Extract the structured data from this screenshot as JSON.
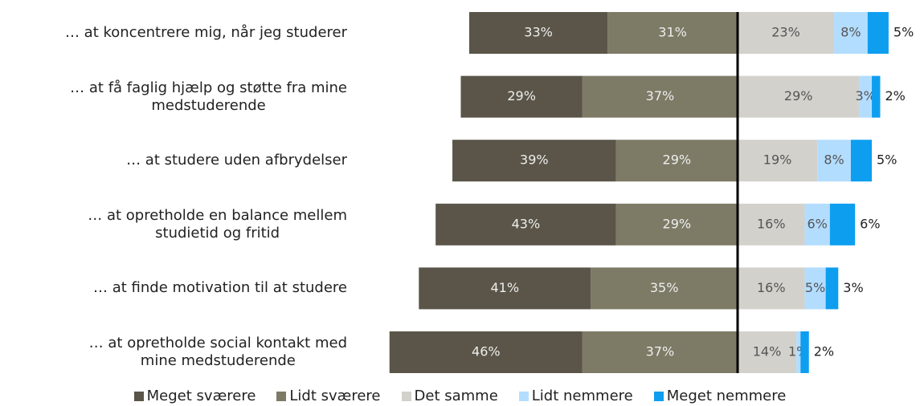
{
  "chart_data": {
    "type": "diverging_bar",
    "categories": [
      [
        "… at koncentrere mig, når jeg studerer"
      ],
      [
        "… at få faglig hjælp og støtte fra mine",
        "medstuderende"
      ],
      [
        "… at studere uden afbrydelser"
      ],
      [
        "… at opretholde en balance mellem",
        "studietid og fritid"
      ],
      [
        "… at finde motivation til at studere"
      ],
      [
        "… at opretholde social kontakt med",
        "mine medstuderende"
      ]
    ],
    "series": [
      {
        "name": "Meget sværere",
        "color": "#5a5548",
        "values": [
          33,
          29,
          39,
          43,
          41,
          46
        ],
        "value_labels": [
          "33%",
          "29%",
          "39%",
          "43%",
          "41%",
          "46%"
        ]
      },
      {
        "name": "Lidt sværere",
        "color": "#7d7a66",
        "values": [
          31,
          37,
          29,
          29,
          35,
          37
        ],
        "value_labels": [
          "31%",
          "37%",
          "29%",
          "29%",
          "35%",
          "37%"
        ]
      },
      {
        "name": "Det samme",
        "color": "#d3d1cc",
        "values": [
          23,
          29,
          19,
          16,
          16,
          14
        ],
        "value_labels": [
          "23%",
          "29%",
          "19%",
          "16%",
          "16%",
          "14%"
        ]
      },
      {
        "name": "Lidt nemmere",
        "color": "#b3ddff",
        "values": [
          8,
          3,
          8,
          6,
          5,
          1
        ],
        "value_labels": [
          "8%",
          "3%",
          "8%",
          "6%",
          "5%",
          "1%"
        ]
      },
      {
        "name": "Meget nemmere",
        "color": "#0d9ef0",
        "values": [
          5,
          2,
          5,
          6,
          3,
          2
        ],
        "value_labels": [
          "5%",
          "2%",
          "5%",
          "6%",
          "3%",
          "2%"
        ]
      }
    ]
  }
}
